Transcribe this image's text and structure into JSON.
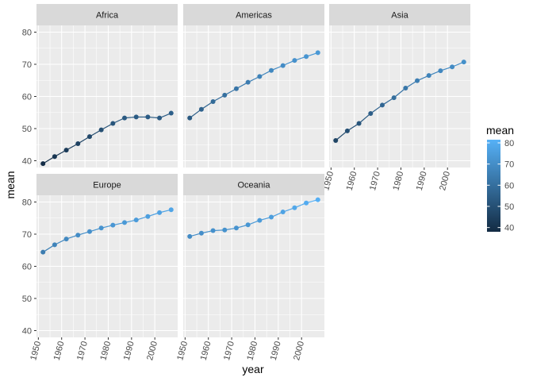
{
  "chart_data": {
    "type": "line",
    "xlabel": "year",
    "ylabel": "mean",
    "x_ticks": [
      1950,
      1960,
      1970,
      1980,
      1990,
      2000
    ],
    "y_ticks": [
      40,
      50,
      60,
      70,
      80
    ],
    "xlim": [
      1949.2,
      2009.8
    ],
    "ylim": [
      37.9,
      82.1
    ],
    "x": [
      1952,
      1957,
      1962,
      1967,
      1972,
      1977,
      1982,
      1987,
      1992,
      1997,
      2002,
      2007
    ],
    "facets": [
      {
        "name": "Africa",
        "values": [
          39.1,
          41.3,
          43.3,
          45.3,
          47.5,
          49.6,
          51.6,
          53.3,
          53.6,
          53.6,
          53.3,
          54.8
        ]
      },
      {
        "name": "Americas",
        "values": [
          53.3,
          56.0,
          58.4,
          60.4,
          62.4,
          64.4,
          66.2,
          68.1,
          69.6,
          71.2,
          72.4,
          73.6
        ]
      },
      {
        "name": "Asia",
        "values": [
          46.3,
          49.3,
          51.6,
          54.7,
          57.3,
          59.6,
          62.6,
          64.9,
          66.5,
          68.0,
          69.2,
          70.7
        ]
      },
      {
        "name": "Europe",
        "values": [
          64.4,
          66.7,
          68.5,
          69.7,
          70.8,
          71.9,
          72.8,
          73.6,
          74.4,
          75.5,
          76.7,
          77.6
        ]
      },
      {
        "name": "Oceania",
        "values": [
          69.3,
          70.3,
          71.1,
          71.3,
          71.9,
          72.9,
          74.3,
          75.3,
          76.9,
          78.2,
          79.7,
          80.7
        ]
      }
    ],
    "legend": {
      "title": "mean",
      "labels": [
        40,
        50,
        60,
        70,
        80
      ],
      "range": [
        38,
        81.5
      ],
      "color_low": "#132B43",
      "color_high": "#56B1F7",
      "position": "right"
    },
    "grid": true,
    "panel_bg": "#EBEBEB",
    "strip_bg": "#D9D9D9"
  }
}
